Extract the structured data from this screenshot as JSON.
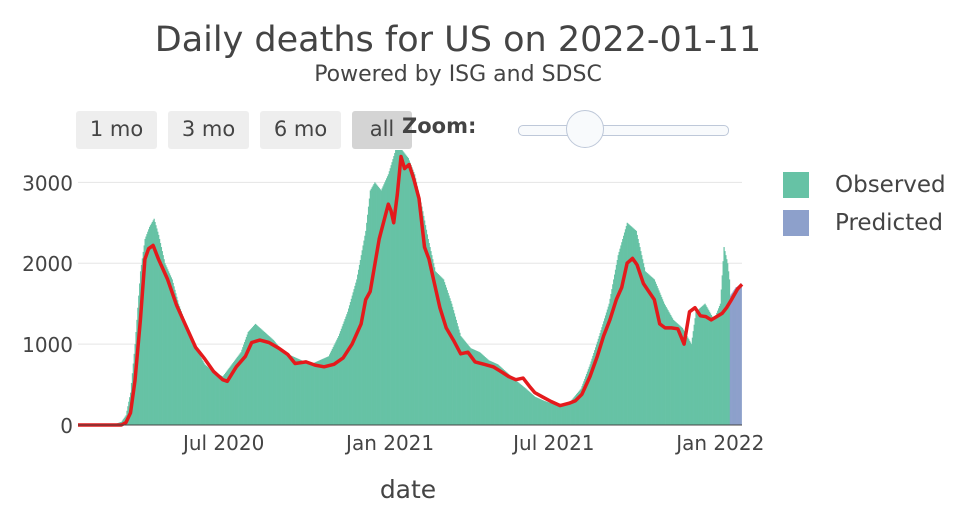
{
  "title": "Daily deaths for US on 2022-01-11",
  "subtitle": "Powered by ISG and SDSC",
  "range_selector": {
    "buttons": [
      {
        "label": "1 mo",
        "active": false
      },
      {
        "label": "3 mo",
        "active": false
      },
      {
        "label": "6 mo",
        "active": false
      },
      {
        "label": "all",
        "active": true
      }
    ],
    "zoom_label": "Zoom:"
  },
  "colors": {
    "observed": "#66c2a5",
    "predicted": "#8da0cb",
    "trend": "#e41a1c",
    "grid": "#e5e5e5"
  },
  "chart_data": {
    "type": "bar",
    "xlabel": "date",
    "ylabel": "",
    "x_range": [
      "2020-01-22",
      "2022-01-25"
    ],
    "ylim": [
      0,
      3400
    ],
    "x_ticks": [
      {
        "date": "2020-07-01",
        "label": "Jul 2020"
      },
      {
        "date": "2021-01-01",
        "label": "Jan 2021"
      },
      {
        "date": "2021-07-01",
        "label": "Jul 2021"
      },
      {
        "date": "2022-01-01",
        "label": "Jan 2022"
      }
    ],
    "y_ticks": [
      0,
      1000,
      2000,
      3000
    ],
    "legend": {
      "position": "right",
      "entries": [
        "Observed",
        "Predicted"
      ]
    },
    "series": [
      {
        "name": "Observed",
        "kind": "bar",
        "points": [
          [
            "2020-01-22",
            0
          ],
          [
            "2020-02-15",
            0
          ],
          [
            "2020-03-01",
            5
          ],
          [
            "2020-03-10",
            40
          ],
          [
            "2020-03-15",
            120
          ],
          [
            "2020-03-20",
            400
          ],
          [
            "2020-03-25",
            1000
          ],
          [
            "2020-03-31",
            1900
          ],
          [
            "2020-04-05",
            2300
          ],
          [
            "2020-04-10",
            2450
          ],
          [
            "2020-04-15",
            2550
          ],
          [
            "2020-04-20",
            2350
          ],
          [
            "2020-04-27",
            2000
          ],
          [
            "2020-05-05",
            1800
          ],
          [
            "2020-05-12",
            1500
          ],
          [
            "2020-05-20",
            1250
          ],
          [
            "2020-05-31",
            950
          ],
          [
            "2020-06-10",
            750
          ],
          [
            "2020-06-20",
            650
          ],
          [
            "2020-06-30",
            600
          ],
          [
            "2020-07-10",
            750
          ],
          [
            "2020-07-20",
            900
          ],
          [
            "2020-07-28",
            1150
          ],
          [
            "2020-08-05",
            1250
          ],
          [
            "2020-08-15",
            1150
          ],
          [
            "2020-08-25",
            1050
          ],
          [
            "2020-09-05",
            900
          ],
          [
            "2020-09-15",
            850
          ],
          [
            "2020-09-25",
            800
          ],
          [
            "2020-10-05",
            750
          ],
          [
            "2020-10-15",
            800
          ],
          [
            "2020-10-25",
            850
          ],
          [
            "2020-11-05",
            1100
          ],
          [
            "2020-11-15",
            1400
          ],
          [
            "2020-11-25",
            1800
          ],
          [
            "2020-12-05",
            2400
          ],
          [
            "2020-12-10",
            2900
          ],
          [
            "2020-12-15",
            3000
          ],
          [
            "2020-12-22",
            2900
          ],
          [
            "2020-12-30",
            3100
          ],
          [
            "2021-01-07",
            3400
          ],
          [
            "2021-01-14",
            3400
          ],
          [
            "2021-01-21",
            3300
          ],
          [
            "2021-01-28",
            3100
          ],
          [
            "2021-02-05",
            2700
          ],
          [
            "2021-02-12",
            2300
          ],
          [
            "2021-02-20",
            1900
          ],
          [
            "2021-03-01",
            1800
          ],
          [
            "2021-03-10",
            1500
          ],
          [
            "2021-03-20",
            1100
          ],
          [
            "2021-03-31",
            950
          ],
          [
            "2021-04-10",
            900
          ],
          [
            "2021-04-20",
            800
          ],
          [
            "2021-04-30",
            750
          ],
          [
            "2021-05-10",
            650
          ],
          [
            "2021-05-20",
            550
          ],
          [
            "2021-05-31",
            450
          ],
          [
            "2021-06-10",
            350
          ],
          [
            "2021-06-20",
            300
          ],
          [
            "2021-06-30",
            260
          ],
          [
            "2021-07-10",
            240
          ],
          [
            "2021-07-20",
            300
          ],
          [
            "2021-07-31",
            450
          ],
          [
            "2021-08-10",
            750
          ],
          [
            "2021-08-20",
            1100
          ],
          [
            "2021-08-31",
            1500
          ],
          [
            "2021-09-10",
            2100
          ],
          [
            "2021-09-20",
            2500
          ],
          [
            "2021-09-30",
            2400
          ],
          [
            "2021-10-10",
            1900
          ],
          [
            "2021-10-20",
            1800
          ],
          [
            "2021-10-31",
            1500
          ],
          [
            "2021-11-10",
            1300
          ],
          [
            "2021-11-20",
            1200
          ],
          [
            "2021-11-30",
            1000
          ],
          [
            "2021-12-05",
            1400
          ],
          [
            "2021-12-15",
            1500
          ],
          [
            "2021-12-25",
            1300
          ],
          [
            "2022-01-01",
            1500
          ],
          [
            "2022-01-05",
            2200
          ],
          [
            "2022-01-09",
            2000
          ],
          [
            "2022-01-11",
            1800
          ]
        ]
      },
      {
        "name": "Predicted",
        "kind": "bar",
        "points": [
          [
            "2022-01-12",
            1600
          ],
          [
            "2022-01-15",
            1650
          ],
          [
            "2022-01-18",
            1700
          ],
          [
            "2022-01-21",
            1720
          ],
          [
            "2022-01-24",
            1750
          ]
        ]
      },
      {
        "name": "",
        "kind": "line",
        "points": [
          [
            "2020-01-22",
            0
          ],
          [
            "2020-03-10",
            0
          ],
          [
            "2020-03-15",
            30
          ],
          [
            "2020-03-20",
            150
          ],
          [
            "2020-03-25",
            550
          ],
          [
            "2020-03-31",
            1300
          ],
          [
            "2020-04-05",
            2050
          ],
          [
            "2020-04-09",
            2180
          ],
          [
            "2020-04-14",
            2220
          ],
          [
            "2020-04-20",
            2050
          ],
          [
            "2020-04-30",
            1800
          ],
          [
            "2020-05-10",
            1480
          ],
          [
            "2020-05-20",
            1230
          ],
          [
            "2020-05-31",
            960
          ],
          [
            "2020-06-10",
            820
          ],
          [
            "2020-06-20",
            660
          ],
          [
            "2020-06-30",
            560
          ],
          [
            "2020-07-05",
            540
          ],
          [
            "2020-07-15",
            720
          ],
          [
            "2020-07-25",
            850
          ],
          [
            "2020-08-01",
            1020
          ],
          [
            "2020-08-10",
            1050
          ],
          [
            "2020-08-20",
            1020
          ],
          [
            "2020-08-31",
            950
          ],
          [
            "2020-09-10",
            870
          ],
          [
            "2020-09-18",
            760
          ],
          [
            "2020-09-30",
            780
          ],
          [
            "2020-10-10",
            740
          ],
          [
            "2020-10-20",
            720
          ],
          [
            "2020-10-31",
            750
          ],
          [
            "2020-11-10",
            830
          ],
          [
            "2020-11-20",
            1000
          ],
          [
            "2020-11-30",
            1250
          ],
          [
            "2020-12-05",
            1550
          ],
          [
            "2020-12-10",
            1650
          ],
          [
            "2020-12-20",
            2300
          ],
          [
            "2020-12-30",
            2730
          ],
          [
            "2021-01-02",
            2650
          ],
          [
            "2021-01-05",
            2500
          ],
          [
            "2021-01-09",
            2850
          ],
          [
            "2021-01-13",
            3320
          ],
          [
            "2021-01-17",
            3170
          ],
          [
            "2021-01-22",
            3220
          ],
          [
            "2021-01-27",
            3050
          ],
          [
            "2021-02-02",
            2800
          ],
          [
            "2021-02-08",
            2200
          ],
          [
            "2021-02-13",
            2050
          ],
          [
            "2021-02-18",
            1800
          ],
          [
            "2021-02-25",
            1450
          ],
          [
            "2021-03-04",
            1200
          ],
          [
            "2021-03-12",
            1050
          ],
          [
            "2021-03-20",
            880
          ],
          [
            "2021-03-28",
            900
          ],
          [
            "2021-04-05",
            780
          ],
          [
            "2021-04-15",
            750
          ],
          [
            "2021-04-25",
            720
          ],
          [
            "2021-05-05",
            650
          ],
          [
            "2021-05-12",
            600
          ],
          [
            "2021-05-20",
            560
          ],
          [
            "2021-05-28",
            580
          ],
          [
            "2021-06-04",
            480
          ],
          [
            "2021-06-10",
            400
          ],
          [
            "2021-06-18",
            350
          ],
          [
            "2021-06-28",
            290
          ],
          [
            "2021-07-08",
            240
          ],
          [
            "2021-07-18",
            270
          ],
          [
            "2021-07-25",
            300
          ],
          [
            "2021-08-01",
            380
          ],
          [
            "2021-08-10",
            600
          ],
          [
            "2021-08-18",
            850
          ],
          [
            "2021-08-25",
            1100
          ],
          [
            "2021-09-01",
            1300
          ],
          [
            "2021-09-08",
            1550
          ],
          [
            "2021-09-14",
            1700
          ],
          [
            "2021-09-20",
            2000
          ],
          [
            "2021-09-26",
            2060
          ],
          [
            "2021-10-01",
            1980
          ],
          [
            "2021-10-08",
            1750
          ],
          [
            "2021-10-14",
            1650
          ],
          [
            "2021-10-20",
            1550
          ],
          [
            "2021-10-26",
            1250
          ],
          [
            "2021-11-01",
            1200
          ],
          [
            "2021-11-08",
            1200
          ],
          [
            "2021-11-15",
            1190
          ],
          [
            "2021-11-22",
            1000
          ],
          [
            "2021-11-28",
            1400
          ],
          [
            "2021-12-04",
            1450
          ],
          [
            "2021-12-10",
            1350
          ],
          [
            "2021-12-16",
            1340
          ],
          [
            "2021-12-22",
            1300
          ],
          [
            "2021-12-28",
            1340
          ],
          [
            "2022-01-03",
            1380
          ],
          [
            "2022-01-08",
            1450
          ],
          [
            "2022-01-14",
            1560
          ],
          [
            "2022-01-20",
            1680
          ],
          [
            "2022-01-25",
            1740
          ]
        ]
      }
    ]
  }
}
